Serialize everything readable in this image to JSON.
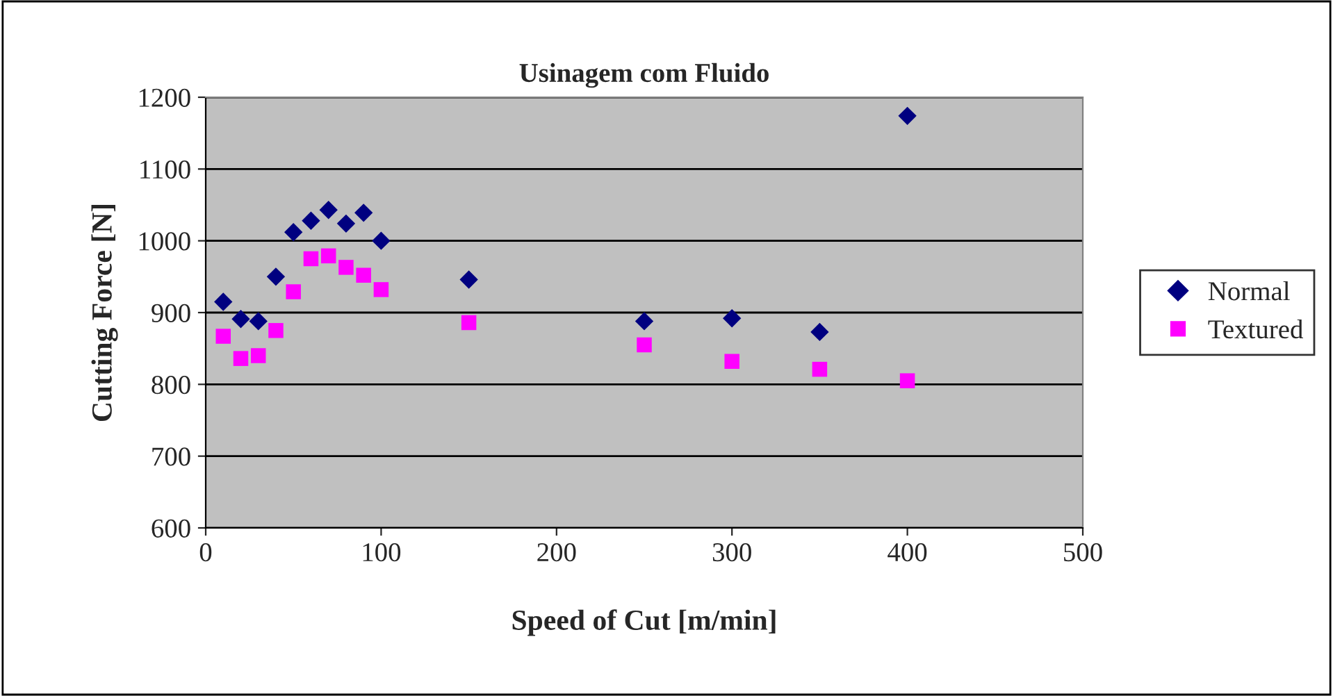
{
  "chart_data": {
    "type": "scatter",
    "title": "Usinagem com Fluido",
    "xlabel": "Speed of Cut [m/min]",
    "ylabel": "Cutting Force [N]",
    "x": [
      10,
      20,
      30,
      40,
      50,
      60,
      70,
      80,
      90,
      100,
      150,
      250,
      300,
      350,
      400
    ],
    "series": [
      {
        "name": "Normal",
        "color": "#000080",
        "marker": "diamond",
        "values": [
          915,
          891,
          888,
          950,
          1012,
          1028,
          1043,
          1024,
          1039,
          1000,
          946,
          888,
          892,
          873,
          1174
        ]
      },
      {
        "name": "Textured",
        "color": "#ff00ff",
        "marker": "square",
        "values": [
          867,
          836,
          840,
          875,
          929,
          975,
          979,
          963,
          952,
          932,
          886,
          855,
          832,
          821,
          805
        ]
      }
    ],
    "xlim": [
      0,
      500
    ],
    "xticks": [
      0,
      100,
      200,
      300,
      400,
      500
    ],
    "ylim": [
      600,
      1200
    ],
    "yticks": [
      600,
      700,
      800,
      900,
      1000,
      1100,
      1200
    ],
    "grid": "y",
    "legend": "right"
  }
}
